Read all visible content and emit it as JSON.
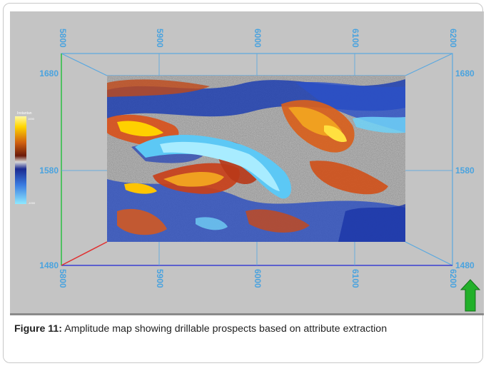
{
  "figure": {
    "label": "Figure 11:",
    "caption": "Amplitude map showing drillable prospects based on attribute extraction"
  },
  "map": {
    "top_axis_labels": [
      "5800",
      "5900",
      "6000",
      "6100",
      "6200"
    ],
    "bottom_axis_labels": [
      "5800",
      "5900",
      "6000",
      "6100",
      "6200"
    ],
    "left_axis_labels": [
      "1680",
      "1580",
      "1480"
    ],
    "right_axis_labels": [
      "1680",
      "1580",
      "1480"
    ],
    "colorbar_title": "Instantan",
    "colorbar_top_value": "1000",
    "colorbar_bottom_value": "-1000",
    "north_arrow": "north-arrow-icon",
    "colors": {
      "axis_line": "#5aa8e0",
      "axis_text": "#4aa3df",
      "panel_bg": "#c4c4c4",
      "amplitude_high": "#ffd500",
      "amplitude_mid": "#c0391a",
      "amplitude_low": "#1f3fb0",
      "amplitude_lowest": "#7fdcff",
      "north_arrow": "#22b02a"
    }
  }
}
